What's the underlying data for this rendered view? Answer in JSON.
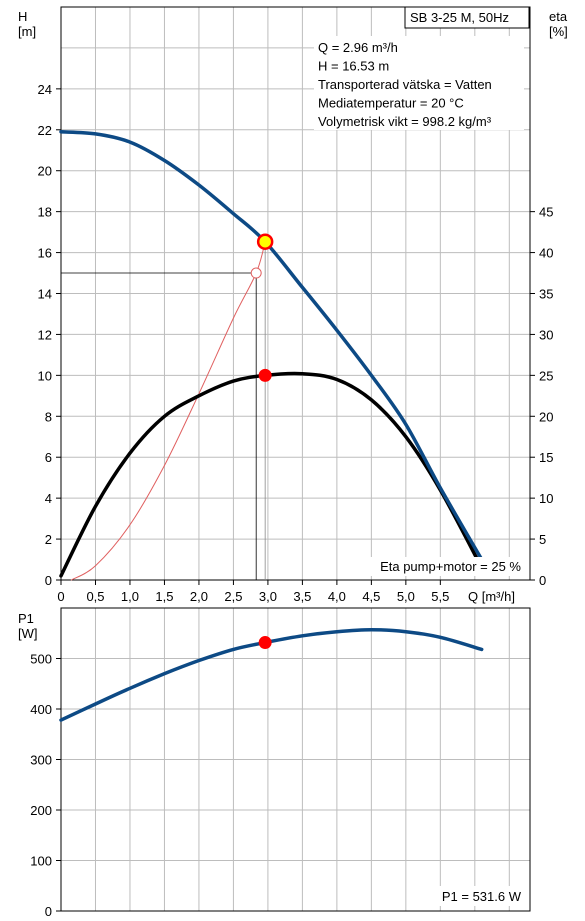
{
  "chart_data": [
    {
      "type": "line",
      "title": "SB 3-25 M, 50Hz",
      "ylabel_left": [
        "H",
        "[m]"
      ],
      "ylabel_right": [
        "eta",
        "[%]"
      ],
      "xlabel": "Q [m³/h]",
      "xlim": [
        0,
        6.8
      ],
      "ylim_left": [
        0,
        28
      ],
      "ylim_right": [
        0,
        70
      ],
      "x_ticks": [
        "0",
        "0,5",
        "1,0",
        "1,5",
        "2,0",
        "2,5",
        "3,0",
        "3,5",
        "4,0",
        "4,5",
        "5,0",
        "5,5"
      ],
      "y_ticks_left": [
        "0",
        "2",
        "4",
        "6",
        "8",
        "10",
        "12",
        "14",
        "16",
        "18",
        "20",
        "22",
        "24"
      ],
      "y_ticks_right": [
        "0",
        "5",
        "10",
        "15",
        "20",
        "25",
        "30",
        "35",
        "40",
        "45"
      ],
      "grid": true,
      "info_lines": [
        "Q = 2.96 m³/h",
        "H = 16.53 m",
        "Transporterad vätska = Vatten",
        "Mediatemperatur = 20 °C",
        "Volymetrisk vikt = 998.2 kg/m³"
      ],
      "eta_label": "Eta pump+motor = 25 %",
      "series": [
        {
          "kind": "head",
          "axis": "left",
          "color": "#0d4a85",
          "x": [
            0,
            0.5,
            1.0,
            1.5,
            2.0,
            2.5,
            2.96,
            3.5,
            4.0,
            4.5,
            5.0,
            5.5,
            6.1
          ],
          "y": [
            21.9,
            21.8,
            21.4,
            20.5,
            19.3,
            17.9,
            16.53,
            14.3,
            12.2,
            10.0,
            7.6,
            4.5,
            1.0
          ]
        },
        {
          "kind": "efficiency",
          "axis": "right",
          "color": "#000000",
          "x": [
            0,
            0.5,
            1.0,
            1.5,
            2.0,
            2.5,
            2.96,
            3.5,
            4.0,
            4.5,
            5.0,
            5.5,
            6.1
          ],
          "y": [
            0.5,
            9,
            15.5,
            20,
            22.5,
            24.3,
            25,
            25.2,
            24.5,
            22,
            17.5,
            11,
            1.5
          ]
        },
        {
          "kind": "system",
          "axis": "left",
          "color": "#e06060",
          "x": [
            0.15,
            0.5,
            1.0,
            1.5,
            2.0,
            2.5,
            2.83,
            2.96
          ],
          "y": [
            0,
            0.7,
            2.7,
            5.6,
            9.1,
            12.8,
            15.0,
            16.53
          ]
        }
      ],
      "operating_point": {
        "x": 2.96,
        "y": 16.53
      },
      "efficiency_point": {
        "x": 2.96,
        "y": 25
      },
      "secondary_point": {
        "x": 2.83,
        "y": 15.0
      }
    },
    {
      "type": "line",
      "ylabel": [
        "P1",
        "[W]"
      ],
      "xlim": [
        0,
        6.8
      ],
      "ylim": [
        0,
        600
      ],
      "y_ticks": [
        "0",
        "100",
        "200",
        "300",
        "400",
        "500"
      ],
      "grid": true,
      "p1_label": "P1 = 531.6 W",
      "series": [
        {
          "kind": "power",
          "color": "#0d4a85",
          "x": [
            0,
            0.5,
            1.0,
            1.5,
            2.0,
            2.5,
            2.96,
            3.5,
            4.0,
            4.5,
            5.0,
            5.5,
            6.1
          ],
          "y": [
            378,
            410,
            441,
            470,
            496,
            518,
            531.6,
            545,
            553,
            557,
            553,
            542,
            518
          ]
        }
      ],
      "operating_point": {
        "x": 2.96,
        "y": 531.6
      }
    }
  ]
}
